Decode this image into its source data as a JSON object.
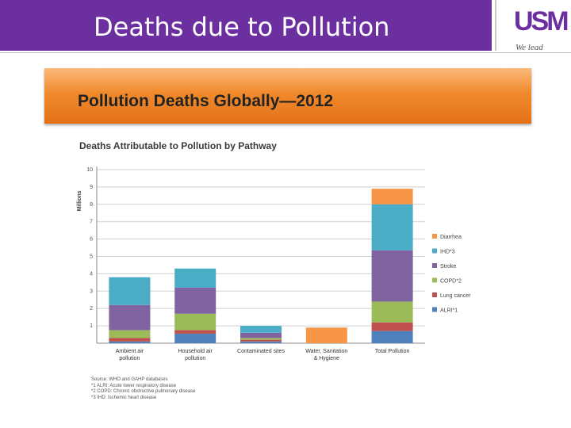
{
  "slide": {
    "title": "Deaths due to Pollution",
    "logo_text": "USM",
    "logo_tagline": "We lead",
    "banner_title": "Pollution Deaths Globally—2012"
  },
  "colors": {
    "title_bar": "#6b2fa0",
    "banner": "#f08a2c"
  },
  "chart_data": {
    "type": "bar",
    "stacked": true,
    "title": "Deaths Attributable to Pollution by Pathway",
    "ylabel": "Millions",
    "xlabel": "",
    "ylim": [
      0,
      10
    ],
    "yticks": [
      1,
      2,
      3,
      4,
      5,
      6,
      7,
      8,
      9,
      10
    ],
    "categories": [
      "Ambient air pollution",
      "Household air pollution",
      "Contaminated sites",
      "Water, Sanitation & Hygiene",
      "Total Pollution"
    ],
    "grid": true,
    "legend_position": "right",
    "series": [
      {
        "name": "ALRI*1",
        "color": "#4f81bd",
        "values": [
          0.1,
          0.55,
          0.1,
          0,
          0.7
        ]
      },
      {
        "name": "Lung cancer",
        "color": "#c0504d",
        "values": [
          0.2,
          0.2,
          0.1,
          0,
          0.5
        ]
      },
      {
        "name": "COPD*2",
        "color": "#9bbb59",
        "values": [
          0.45,
          0.95,
          0.1,
          0,
          1.2
        ]
      },
      {
        "name": "Stroke",
        "color": "#8064a2",
        "values": [
          1.45,
          1.5,
          0.3,
          0,
          2.95
        ]
      },
      {
        "name": "IHD*3",
        "color": "#4bacc6",
        "values": [
          1.6,
          1.1,
          0.4,
          0,
          2.65
        ]
      },
      {
        "name": "Diarrhea",
        "color": "#f79646",
        "values": [
          0,
          0,
          0,
          0.9,
          0.9
        ]
      }
    ],
    "source_notes": [
      "Source: WHO and GAHP databases",
      "*1 ALRI: Acute lower respiratory disease",
      "*2 COPD: Chronic obstructive pulmonary disease",
      "*3 IHD: Ischemic heart disease"
    ]
  }
}
